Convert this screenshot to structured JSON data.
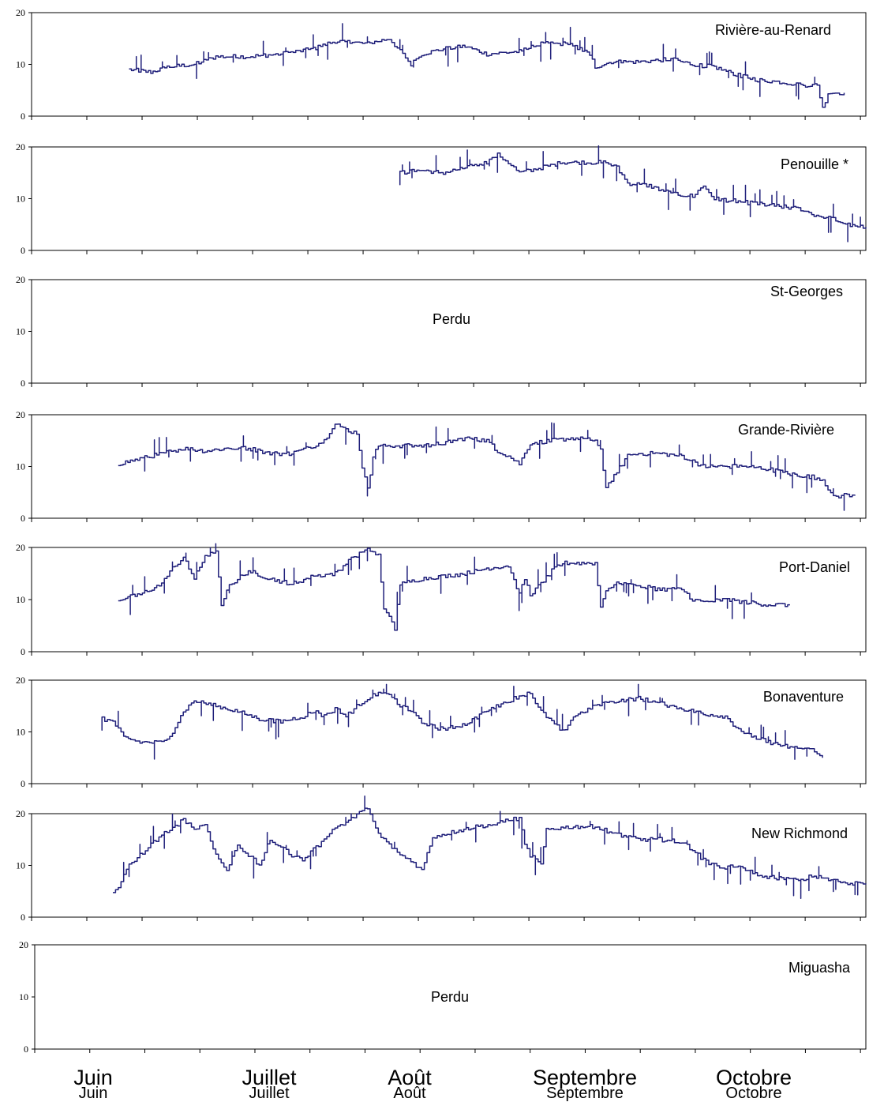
{
  "chart_data": [
    {
      "type": "line",
      "station": "Rivière-au-Renard",
      "status": "",
      "ylim": [
        0,
        20
      ],
      "yticks": [
        "0",
        "10",
        "20"
      ],
      "color": "#1f1f7a",
      "x_start_day": 18,
      "x_end_day": 150,
      "waypoints": [
        [
          18,
          9
        ],
        [
          22,
          8.5
        ],
        [
          25,
          9.5
        ],
        [
          30,
          10
        ],
        [
          34,
          11.5
        ],
        [
          40,
          11.5
        ],
        [
          46,
          12
        ],
        [
          52,
          13
        ],
        [
          56,
          14.5
        ],
        [
          62,
          14
        ],
        [
          66,
          15
        ],
        [
          68,
          12.5
        ],
        [
          70,
          10
        ],
        [
          72,
          12
        ],
        [
          76,
          13
        ],
        [
          80,
          13.5
        ],
        [
          84,
          12
        ],
        [
          90,
          12.5
        ],
        [
          94,
          14
        ],
        [
          99,
          14
        ],
        [
          103,
          12
        ],
        [
          104,
          9.5
        ],
        [
          107,
          10.5
        ],
        [
          112,
          10.5
        ],
        [
          118,
          11
        ],
        [
          122,
          10
        ],
        [
          126,
          9.5
        ],
        [
          130,
          8
        ],
        [
          134,
          7
        ],
        [
          139,
          6.5
        ],
        [
          142,
          6
        ],
        [
          145,
          6
        ],
        [
          146,
          1.5
        ],
        [
          147,
          4.5
        ],
        [
          150,
          4.5
        ]
      ]
    },
    {
      "type": "line",
      "station": "Penouille *",
      "status": "",
      "ylim": [
        0,
        20
      ],
      "yticks": [
        "0",
        "10",
        "20"
      ],
      "color": "#1f1f7a",
      "x_start_day": 68,
      "x_end_day": 154,
      "waypoints": [
        [
          68,
          15
        ],
        [
          72,
          15.5
        ],
        [
          76,
          15
        ],
        [
          80,
          16
        ],
        [
          84,
          17
        ],
        [
          86,
          18.5
        ],
        [
          88,
          17
        ],
        [
          90,
          15
        ],
        [
          94,
          16
        ],
        [
          98,
          17
        ],
        [
          102,
          17
        ],
        [
          106,
          17
        ],
        [
          108,
          16
        ],
        [
          110,
          13
        ],
        [
          114,
          12.5
        ],
        [
          118,
          11
        ],
        [
          122,
          10.5
        ],
        [
          124,
          12.5
        ],
        [
          126,
          10
        ],
        [
          130,
          9.5
        ],
        [
          134,
          9
        ],
        [
          138,
          8.5
        ],
        [
          142,
          8
        ],
        [
          144,
          7
        ],
        [
          148,
          6
        ],
        [
          152,
          4.5
        ],
        [
          154,
          4.5
        ]
      ]
    },
    {
      "type": "line",
      "station": "St-Georges",
      "status": "Perdu",
      "ylim": [
        0,
        20
      ],
      "yticks": [
        "0",
        "10",
        "20"
      ],
      "color": "#1f1f7a",
      "waypoints": []
    },
    {
      "type": "line",
      "station": "Grande-Rivière",
      "status": "",
      "ylim": [
        0,
        20
      ],
      "yticks": [
        "0",
        "10",
        "20"
      ],
      "color": "#1f1f7a",
      "x_start_day": 16,
      "x_end_day": 152,
      "waypoints": [
        [
          16,
          10.5
        ],
        [
          20,
          11.5
        ],
        [
          24,
          12.5
        ],
        [
          28,
          13.5
        ],
        [
          32,
          13
        ],
        [
          36,
          13.5
        ],
        [
          40,
          13.5
        ],
        [
          44,
          12.5
        ],
        [
          48,
          12.5
        ],
        [
          52,
          14
        ],
        [
          54,
          15
        ],
        [
          56,
          18.5
        ],
        [
          58,
          17
        ],
        [
          60,
          16.5
        ],
        [
          61,
          10
        ],
        [
          62,
          5.5
        ],
        [
          63,
          12
        ],
        [
          64,
          14
        ],
        [
          68,
          14
        ],
        [
          72,
          14
        ],
        [
          76,
          14.5
        ],
        [
          80,
          15.5
        ],
        [
          84,
          15
        ],
        [
          86,
          13
        ],
        [
          88,
          12
        ],
        [
          90,
          10.5
        ],
        [
          92,
          14.5
        ],
        [
          96,
          15
        ],
        [
          100,
          15.5
        ],
        [
          104,
          15
        ],
        [
          105,
          13
        ],
        [
          106,
          6
        ],
        [
          108,
          9
        ],
        [
          110,
          12
        ],
        [
          112,
          12.5
        ],
        [
          116,
          12.5
        ],
        [
          120,
          12
        ],
        [
          122,
          11
        ],
        [
          124,
          10
        ],
        [
          128,
          10
        ],
        [
          132,
          10
        ],
        [
          136,
          9.5
        ],
        [
          140,
          8.5
        ],
        [
          144,
          8
        ],
        [
          146,
          7.5
        ],
        [
          148,
          4
        ],
        [
          150,
          4.5
        ],
        [
          152,
          4.5
        ]
      ]
    },
    {
      "type": "line",
      "station": "Port-Daniel",
      "status": "",
      "ylim": [
        0,
        20
      ],
      "yticks": [
        "0",
        "10",
        "20"
      ],
      "color": "#1f1f7a",
      "x_start_day": 16,
      "x_end_day": 140,
      "waypoints": [
        [
          16,
          10
        ],
        [
          20,
          11
        ],
        [
          24,
          13
        ],
        [
          26,
          16
        ],
        [
          28,
          18
        ],
        [
          30,
          14
        ],
        [
          32,
          18.5
        ],
        [
          34,
          19
        ],
        [
          35,
          9
        ],
        [
          36,
          12
        ],
        [
          38,
          14
        ],
        [
          40,
          15.5
        ],
        [
          44,
          14
        ],
        [
          48,
          13
        ],
        [
          52,
          14.5
        ],
        [
          56,
          15
        ],
        [
          58,
          17
        ],
        [
          60,
          18.5
        ],
        [
          62,
          19.5
        ],
        [
          64,
          18.5
        ],
        [
          65,
          8
        ],
        [
          66,
          7
        ],
        [
          67,
          4.5
        ],
        [
          68,
          13
        ],
        [
          72,
          14
        ],
        [
          76,
          14.5
        ],
        [
          80,
          15
        ],
        [
          84,
          16
        ],
        [
          88,
          16.5
        ],
        [
          90,
          11
        ],
        [
          91,
          14
        ],
        [
          92,
          11
        ],
        [
          94,
          13
        ],
        [
          96,
          15.5
        ],
        [
          98,
          17
        ],
        [
          102,
          17
        ],
        [
          104,
          17
        ],
        [
          105,
          8.5
        ],
        [
          106,
          12
        ],
        [
          108,
          13
        ],
        [
          112,
          12.5
        ],
        [
          116,
          12
        ],
        [
          120,
          12
        ],
        [
          122,
          10
        ],
        [
          124,
          9.5
        ],
        [
          128,
          10
        ],
        [
          132,
          9.5
        ],
        [
          136,
          9
        ],
        [
          140,
          9
        ]
      ]
    },
    {
      "type": "line",
      "station": "Bonaventure",
      "status": "",
      "ylim": [
        0,
        20
      ],
      "yticks": [
        "0",
        "10",
        "20"
      ],
      "color": "#1f1f7a",
      "x_start_day": 13,
      "x_end_day": 146,
      "waypoints": [
        [
          13,
          12.5
        ],
        [
          15,
          12
        ],
        [
          17,
          9
        ],
        [
          20,
          8
        ],
        [
          24,
          8
        ],
        [
          26,
          10
        ],
        [
          28,
          14
        ],
        [
          30,
          16
        ],
        [
          34,
          15
        ],
        [
          38,
          14
        ],
        [
          42,
          12.5
        ],
        [
          46,
          12
        ],
        [
          50,
          13
        ],
        [
          52,
          14
        ],
        [
          54,
          13
        ],
        [
          56,
          14.5
        ],
        [
          58,
          13
        ],
        [
          60,
          15
        ],
        [
          62,
          16.5
        ],
        [
          64,
          17.5
        ],
        [
          66,
          17
        ],
        [
          68,
          15
        ],
        [
          70,
          14
        ],
        [
          72,
          12
        ],
        [
          74,
          11
        ],
        [
          76,
          10.5
        ],
        [
          80,
          11.5
        ],
        [
          84,
          14
        ],
        [
          88,
          16
        ],
        [
          90,
          17
        ],
        [
          92,
          17.5
        ],
        [
          94,
          14
        ],
        [
          96,
          12
        ],
        [
          98,
          10
        ],
        [
          100,
          13
        ],
        [
          104,
          15
        ],
        [
          108,
          16
        ],
        [
          112,
          16.5
        ],
        [
          116,
          15.5
        ],
        [
          120,
          14.5
        ],
        [
          124,
          13.5
        ],
        [
          128,
          13
        ],
        [
          130,
          11
        ],
        [
          132,
          9.5
        ],
        [
          136,
          8
        ],
        [
          140,
          7
        ],
        [
          144,
          6.5
        ],
        [
          146,
          5
        ]
      ]
    },
    {
      "type": "line",
      "station": "New Richmond",
      "status": "",
      "ylim": [
        0,
        20
      ],
      "yticks": [
        "0",
        "10",
        "20"
      ],
      "color": "#1f1f7a",
      "x_start_day": 15,
      "x_end_day": 154,
      "waypoints": [
        [
          15,
          5
        ],
        [
          16,
          6
        ],
        [
          18,
          10
        ],
        [
          20,
          12
        ],
        [
          22,
          14
        ],
        [
          24,
          16
        ],
        [
          26,
          17
        ],
        [
          28,
          19
        ],
        [
          30,
          17
        ],
        [
          32,
          18
        ],
        [
          34,
          12
        ],
        [
          36,
          9
        ],
        [
          38,
          14
        ],
        [
          40,
          12
        ],
        [
          42,
          10
        ],
        [
          44,
          15
        ],
        [
          46,
          13.5
        ],
        [
          48,
          12
        ],
        [
          50,
          11
        ],
        [
          52,
          13
        ],
        [
          54,
          15
        ],
        [
          56,
          17.5
        ],
        [
          58,
          18
        ],
        [
          60,
          20
        ],
        [
          62,
          21
        ],
        [
          64,
          16
        ],
        [
          66,
          14
        ],
        [
          68,
          12
        ],
        [
          70,
          11
        ],
        [
          72,
          9
        ],
        [
          74,
          15.5
        ],
        [
          78,
          16.5
        ],
        [
          82,
          17.5
        ],
        [
          86,
          18
        ],
        [
          88,
          19
        ],
        [
          90,
          19
        ],
        [
          91,
          14
        ],
        [
          92,
          12
        ],
        [
          93,
          11
        ],
        [
          94,
          10
        ],
        [
          95,
          17
        ],
        [
          100,
          17.5
        ],
        [
          104,
          17.5
        ],
        [
          108,
          16
        ],
        [
          112,
          15
        ],
        [
          116,
          15
        ],
        [
          120,
          14.5
        ],
        [
          122,
          13
        ],
        [
          124,
          11
        ],
        [
          126,
          10
        ],
        [
          128,
          9.5
        ],
        [
          130,
          10
        ],
        [
          134,
          8
        ],
        [
          138,
          7.5
        ],
        [
          142,
          7
        ],
        [
          144,
          8
        ],
        [
          148,
          7
        ],
        [
          152,
          6.5
        ],
        [
          154,
          6.5
        ]
      ]
    },
    {
      "type": "line",
      "station": "Miguasha",
      "status": "Perdu",
      "ylim": [
        0,
        20
      ],
      "yticks": [
        "0",
        "10",
        "20"
      ],
      "color": "#1f1f7a",
      "waypoints": []
    }
  ],
  "x_axis": {
    "months_top": [
      "Juin",
      "Juillet",
      "Août",
      "Septembre",
      "Octobre"
    ],
    "months": [
      "Juin",
      "Juillet",
      "Août",
      "Septembre",
      "Octobre"
    ],
    "month_start_days": [
      0,
      30,
      61,
      92,
      122
    ],
    "xlim_days": [
      0,
      154
    ]
  }
}
